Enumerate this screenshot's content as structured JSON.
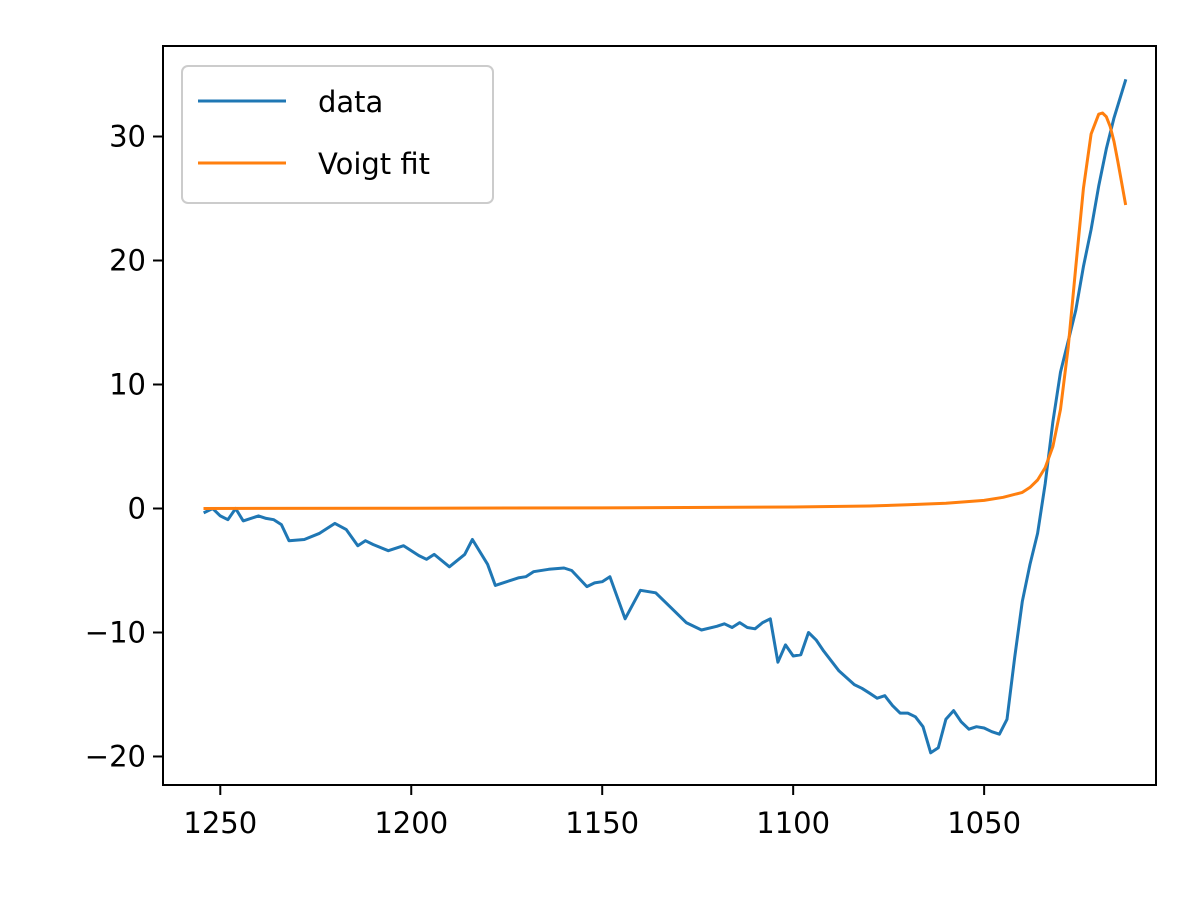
{
  "chart_data": {
    "type": "line",
    "title": "",
    "xlabel": "",
    "ylabel": "",
    "x_inverted": true,
    "xlim": [
      1265,
      1005
    ],
    "ylim": [
      -22.3,
      37.3
    ],
    "grid": false,
    "legend": {
      "placement": "top-left"
    },
    "xticks": [
      1250,
      1200,
      1150,
      1100,
      1050
    ],
    "xtick_labels": [
      "1250",
      "1200",
      "1150",
      "1100",
      "1050"
    ],
    "yticks": [
      30,
      20,
      10,
      0,
      -10,
      -20
    ],
    "ytick_labels": [
      "30",
      "20",
      "10",
      "0",
      "−10",
      "−20"
    ],
    "series": [
      {
        "name": "data",
        "color": "#1f77b4",
        "x": [
          1254,
          1252,
          1250,
          1248,
          1246,
          1244,
          1240,
          1238,
          1236,
          1234,
          1232,
          1228,
          1224,
          1220,
          1217,
          1214,
          1212,
          1210,
          1206,
          1202,
          1198,
          1196,
          1194,
          1190,
          1186,
          1184,
          1180,
          1178,
          1176,
          1174,
          1172,
          1170,
          1168,
          1164,
          1160,
          1158,
          1154,
          1152,
          1150,
          1148,
          1144,
          1140,
          1136,
          1132,
          1128,
          1124,
          1120,
          1118,
          1116,
          1114,
          1112,
          1110,
          1108,
          1106,
          1104,
          1102,
          1100,
          1098,
          1096,
          1094,
          1092,
          1088,
          1084,
          1082,
          1080,
          1078,
          1076,
          1074,
          1072,
          1070,
          1068,
          1066,
          1064,
          1062,
          1060,
          1058,
          1056,
          1054,
          1052,
          1050,
          1048,
          1046,
          1044,
          1042,
          1040,
          1038,
          1036,
          1034,
          1032,
          1030,
          1028,
          1026,
          1024,
          1022,
          1020,
          1018,
          1016,
          1013
        ],
        "y": [
          -0.3,
          0.0,
          -0.6,
          -0.9,
          0.0,
          -1.0,
          -0.6,
          -0.8,
          -0.9,
          -1.3,
          -2.6,
          -2.5,
          -2.0,
          -1.2,
          -1.7,
          -3.0,
          -2.6,
          -2.9,
          -3.4,
          -3.0,
          -3.8,
          -4.1,
          -3.7,
          -4.7,
          -3.7,
          -2.5,
          -4.5,
          -6.2,
          -6.0,
          -5.8,
          -5.6,
          -5.5,
          -5.1,
          -4.9,
          -4.8,
          -5.0,
          -6.3,
          -6.0,
          -5.9,
          -5.5,
          -8.9,
          -6.6,
          -6.8,
          -8.0,
          -9.2,
          -9.8,
          -9.5,
          -9.3,
          -9.6,
          -9.2,
          -9.6,
          -9.7,
          -9.2,
          -8.9,
          -12.4,
          -11.0,
          -11.9,
          -11.8,
          -10.0,
          -10.6,
          -11.5,
          -13.1,
          -14.2,
          -14.5,
          -14.9,
          -15.3,
          -15.1,
          -15.9,
          -16.5,
          -16.5,
          -16.8,
          -17.6,
          -19.7,
          -19.3,
          -17.0,
          -16.3,
          -17.2,
          -17.8,
          -17.6,
          -17.7,
          -18.0,
          -18.2,
          -17.0,
          -12.0,
          -7.5,
          -4.5,
          -2.0,
          2.0,
          7.0,
          11.0,
          13.5,
          16.0,
          19.5,
          22.5,
          26.0,
          29.0,
          31.5,
          34.5
        ]
      },
      {
        "name": "Voigt fit",
        "color": "#ff7f0e",
        "x": [
          1254,
          1200,
          1150,
          1100,
          1080,
          1070,
          1060,
          1050,
          1045,
          1040,
          1038,
          1036,
          1034,
          1032,
          1030,
          1028,
          1026,
          1024,
          1022,
          1020,
          1019,
          1018,
          1017,
          1016,
          1015,
          1014,
          1013
        ],
        "y": [
          0.0,
          0.02,
          0.05,
          0.12,
          0.2,
          0.3,
          0.42,
          0.65,
          0.9,
          1.3,
          1.7,
          2.3,
          3.3,
          5.0,
          8.0,
          13.0,
          19.5,
          25.8,
          30.2,
          31.8,
          31.9,
          31.6,
          30.8,
          29.6,
          28.0,
          26.3,
          24.6
        ]
      }
    ]
  }
}
